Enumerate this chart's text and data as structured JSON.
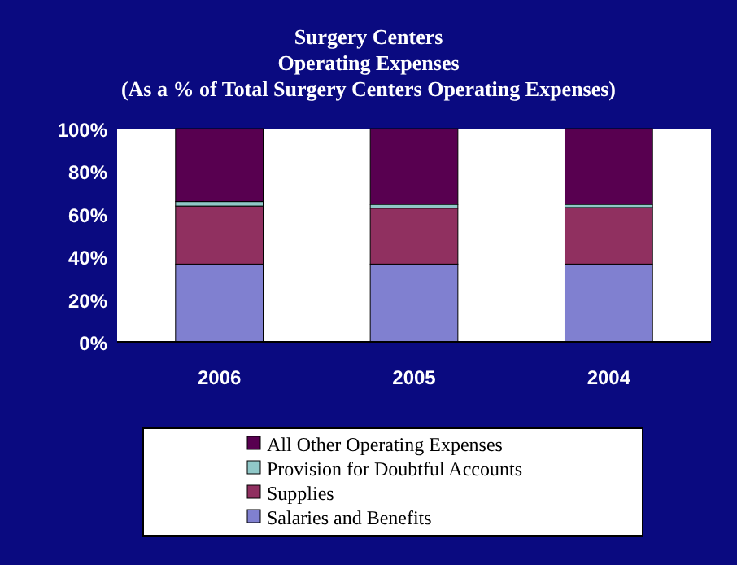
{
  "chart_data": {
    "type": "bar",
    "stacked": true,
    "title": "Surgery Centers\nOperating Expenses\n(As a % of Total Surgery Centers Operating Expenses)",
    "categories": [
      "2006",
      "2005",
      "2004"
    ],
    "series": [
      {
        "name": "Salaries and Benefits",
        "color": "#8080d0",
        "values": [
          36.5,
          36.5,
          36.5
        ]
      },
      {
        "name": "Supplies",
        "color": "#903060",
        "values": [
          27.2,
          26.2,
          26.5
        ]
      },
      {
        "name": "Provision for Doubtful Accounts",
        "color": "#90c8c8",
        "values": [
          2.1,
          1.8,
          1.5
        ]
      },
      {
        "name": "All Other Operating Expenses",
        "color": "#580050",
        "values": [
          34.2,
          35.5,
          35.5
        ]
      }
    ],
    "ylim": [
      0,
      100
    ],
    "yticks": [
      {
        "value": 0,
        "label": "0%"
      },
      {
        "value": 20,
        "label": "20%"
      },
      {
        "value": 40,
        "label": "40%"
      },
      {
        "value": 60,
        "label": "60%"
      },
      {
        "value": 80,
        "label": "80%"
      },
      {
        "value": 100,
        "label": "100%"
      }
    ],
    "legend": "bottom"
  }
}
